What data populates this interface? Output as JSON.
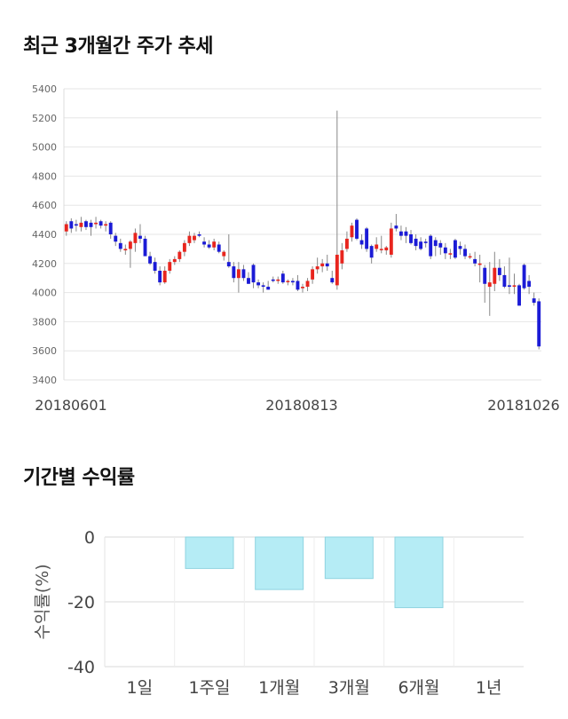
{
  "charts": {
    "price": {
      "title": "최근 3개월간 주가 추세"
    },
    "returns": {
      "title": "기간별 수익률"
    }
  },
  "colors": {
    "up": "#e8251e",
    "down": "#1b1bd6",
    "wick": "#888888",
    "bar_fill": "#b5ecf5",
    "bar_stroke": "#8fd3e0",
    "grid": "#e6e6e6"
  },
  "chart_data": [
    {
      "type": "candlestick",
      "title": "최근 3개월간 주가 추세",
      "ylim": [
        3400,
        5400
      ],
      "yticks": [
        3400,
        3600,
        3800,
        4000,
        4200,
        4400,
        4600,
        4800,
        5000,
        5200,
        5400
      ],
      "x_tick_labels": [
        "20180601",
        "20180813",
        "20181026"
      ],
      "grid": true,
      "candles": [
        {
          "o": 4420,
          "h": 4490,
          "l": 4390,
          "c": 4470
        },
        {
          "o": 4490,
          "h": 4510,
          "l": 4410,
          "c": 4440
        },
        {
          "o": 4470,
          "h": 4500,
          "l": 4420,
          "c": 4460
        },
        {
          "o": 4450,
          "h": 4520,
          "l": 4420,
          "c": 4480
        },
        {
          "o": 4490,
          "h": 4500,
          "l": 4430,
          "c": 4450
        },
        {
          "o": 4480,
          "h": 4500,
          "l": 4390,
          "c": 4450
        },
        {
          "o": 4470,
          "h": 4520,
          "l": 4440,
          "c": 4480
        },
        {
          "o": 4490,
          "h": 4500,
          "l": 4440,
          "c": 4460
        },
        {
          "o": 4460,
          "h": 4490,
          "l": 4420,
          "c": 4470
        },
        {
          "o": 4480,
          "h": 4490,
          "l": 4370,
          "c": 4400
        },
        {
          "o": 4390,
          "h": 4410,
          "l": 4320,
          "c": 4350
        },
        {
          "o": 4340,
          "h": 4370,
          "l": 4280,
          "c": 4300
        },
        {
          "o": 4290,
          "h": 4330,
          "l": 4260,
          "c": 4300
        },
        {
          "o": 4300,
          "h": 4360,
          "l": 4170,
          "c": 4350
        },
        {
          "o": 4340,
          "h": 4440,
          "l": 4280,
          "c": 4410
        },
        {
          "o": 4390,
          "h": 4470,
          "l": 4340,
          "c": 4370
        },
        {
          "o": 4370,
          "h": 4390,
          "l": 4270,
          "c": 4250
        },
        {
          "o": 4250,
          "h": 4280,
          "l": 4190,
          "c": 4200
        },
        {
          "o": 4210,
          "h": 4240,
          "l": 4130,
          "c": 4150
        },
        {
          "o": 4150,
          "h": 4180,
          "l": 4050,
          "c": 4070
        },
        {
          "o": 4070,
          "h": 4180,
          "l": 4060,
          "c": 4150
        },
        {
          "o": 4150,
          "h": 4230,
          "l": 4130,
          "c": 4210
        },
        {
          "o": 4210,
          "h": 4250,
          "l": 4190,
          "c": 4230
        },
        {
          "o": 4230,
          "h": 4290,
          "l": 4210,
          "c": 4280
        },
        {
          "o": 4280,
          "h": 4360,
          "l": 4250,
          "c": 4340
        },
        {
          "o": 4340,
          "h": 4420,
          "l": 4320,
          "c": 4390
        },
        {
          "o": 4360,
          "h": 4410,
          "l": 4340,
          "c": 4390
        },
        {
          "o": 4400,
          "h": 4420,
          "l": 4380,
          "c": 4390
        },
        {
          "o": 4350,
          "h": 4380,
          "l": 4310,
          "c": 4330
        },
        {
          "o": 4330,
          "h": 4360,
          "l": 4300,
          "c": 4310
        },
        {
          "o": 4310,
          "h": 4370,
          "l": 4290,
          "c": 4350
        },
        {
          "o": 4330,
          "h": 4350,
          "l": 4270,
          "c": 4280
        },
        {
          "o": 4250,
          "h": 4290,
          "l": 4220,
          "c": 4280
        },
        {
          "o": 4210,
          "h": 4400,
          "l": 4170,
          "c": 4180
        },
        {
          "o": 4180,
          "h": 4210,
          "l": 4070,
          "c": 4100
        },
        {
          "o": 4100,
          "h": 4210,
          "l": 4000,
          "c": 4160
        },
        {
          "o": 4160,
          "h": 4190,
          "l": 4080,
          "c": 4100
        },
        {
          "o": 4100,
          "h": 4140,
          "l": 4060,
          "c": 4060
        },
        {
          "o": 4190,
          "h": 4200,
          "l": 4030,
          "c": 4070
        },
        {
          "o": 4070,
          "h": 4090,
          "l": 4030,
          "c": 4050
        },
        {
          "o": 4050,
          "h": 4070,
          "l": 4000,
          "c": 4040
        },
        {
          "o": 4040,
          "h": 4080,
          "l": 4020,
          "c": 4020
        },
        {
          "o": 4090,
          "h": 4110,
          "l": 4070,
          "c": 4080
        },
        {
          "o": 4080,
          "h": 4110,
          "l": 4060,
          "c": 4090
        },
        {
          "o": 4130,
          "h": 4150,
          "l": 4060,
          "c": 4070
        },
        {
          "o": 4080,
          "h": 4090,
          "l": 4050,
          "c": 4080
        },
        {
          "o": 4080,
          "h": 4100,
          "l": 4050,
          "c": 4070
        },
        {
          "o": 4080,
          "h": 4120,
          "l": 4010,
          "c": 4020
        },
        {
          "o": 4030,
          "h": 4060,
          "l": 4000,
          "c": 4040
        },
        {
          "o": 4040,
          "h": 4100,
          "l": 4010,
          "c": 4080
        },
        {
          "o": 4090,
          "h": 4180,
          "l": 4060,
          "c": 4160
        },
        {
          "o": 4160,
          "h": 4240,
          "l": 4130,
          "c": 4180
        },
        {
          "o": 4180,
          "h": 4230,
          "l": 4140,
          "c": 4200
        },
        {
          "o": 4200,
          "h": 4260,
          "l": 4150,
          "c": 4180
        },
        {
          "o": 4100,
          "h": 4150,
          "l": 4060,
          "c": 4070
        },
        {
          "o": 4050,
          "h": 5250,
          "l": 4020,
          "c": 4260
        },
        {
          "o": 4200,
          "h": 4340,
          "l": 4160,
          "c": 4290
        },
        {
          "o": 4300,
          "h": 4420,
          "l": 4280,
          "c": 4370
        },
        {
          "o": 4380,
          "h": 4480,
          "l": 4350,
          "c": 4460
        },
        {
          "o": 4500,
          "h": 4510,
          "l": 4360,
          "c": 4370
        },
        {
          "o": 4360,
          "h": 4400,
          "l": 4300,
          "c": 4330
        },
        {
          "o": 4440,
          "h": 4450,
          "l": 4280,
          "c": 4300
        },
        {
          "o": 4320,
          "h": 4330,
          "l": 4200,
          "c": 4240
        },
        {
          "o": 4300,
          "h": 4380,
          "l": 4280,
          "c": 4330
        },
        {
          "o": 4300,
          "h": 4390,
          "l": 4270,
          "c": 4300
        },
        {
          "o": 4290,
          "h": 4320,
          "l": 4260,
          "c": 4310
        },
        {
          "o": 4260,
          "h": 4480,
          "l": 4240,
          "c": 4440
        },
        {
          "o": 4460,
          "h": 4540,
          "l": 4420,
          "c": 4440
        },
        {
          "o": 4420,
          "h": 4460,
          "l": 4360,
          "c": 4390
        },
        {
          "o": 4420,
          "h": 4450,
          "l": 4340,
          "c": 4390
        },
        {
          "o": 4400,
          "h": 4430,
          "l": 4330,
          "c": 4340
        },
        {
          "o": 4370,
          "h": 4400,
          "l": 4290,
          "c": 4320
        },
        {
          "o": 4350,
          "h": 4380,
          "l": 4290,
          "c": 4300
        },
        {
          "o": 4350,
          "h": 4370,
          "l": 4310,
          "c": 4340
        },
        {
          "o": 4390,
          "h": 4400,
          "l": 4230,
          "c": 4250
        },
        {
          "o": 4360,
          "h": 4380,
          "l": 4250,
          "c": 4320
        },
        {
          "o": 4340,
          "h": 4360,
          "l": 4260,
          "c": 4310
        },
        {
          "o": 4310,
          "h": 4340,
          "l": 4230,
          "c": 4270
        },
        {
          "o": 4270,
          "h": 4300,
          "l": 4230,
          "c": 4270
        },
        {
          "o": 4360,
          "h": 4370,
          "l": 4230,
          "c": 4240
        },
        {
          "o": 4320,
          "h": 4350,
          "l": 4260,
          "c": 4300
        },
        {
          "o": 4300,
          "h": 4330,
          "l": 4230,
          "c": 4250
        },
        {
          "o": 4250,
          "h": 4270,
          "l": 4230,
          "c": 4250
        },
        {
          "o": 4230,
          "h": 4280,
          "l": 4180,
          "c": 4200
        },
        {
          "o": 4190,
          "h": 4260,
          "l": 4070,
          "c": 4200
        },
        {
          "o": 4170,
          "h": 4190,
          "l": 3930,
          "c": 4060
        },
        {
          "o": 4040,
          "h": 4210,
          "l": 3840,
          "c": 4070
        },
        {
          "o": 4060,
          "h": 4280,
          "l": 4010,
          "c": 4170
        },
        {
          "o": 4170,
          "h": 4230,
          "l": 4080,
          "c": 4120
        },
        {
          "o": 4120,
          "h": 4180,
          "l": 4030,
          "c": 4040
        },
        {
          "o": 4050,
          "h": 4240,
          "l": 3990,
          "c": 4040
        },
        {
          "o": 4040,
          "h": 4130,
          "l": 3990,
          "c": 4050
        },
        {
          "o": 4050,
          "h": 4060,
          "l": 3910,
          "c": 3910
        },
        {
          "o": 4190,
          "h": 4200,
          "l": 4020,
          "c": 4030
        },
        {
          "o": 4080,
          "h": 4120,
          "l": 3990,
          "c": 4040
        },
        {
          "o": 3960,
          "h": 4000,
          "l": 3910,
          "c": 3930
        },
        {
          "o": 3940,
          "h": 3960,
          "l": 3610,
          "c": 3630
        }
      ]
    },
    {
      "type": "bar",
      "title": "기간별 수익률",
      "ylabel": "수익률(%)",
      "categories": [
        "1일",
        "1주일",
        "1개월",
        "3개월",
        "6개월",
        "1년"
      ],
      "values": [
        0,
        -9.7,
        -16.2,
        -12.8,
        -21.8,
        0
      ],
      "ylim": [
        -40,
        0
      ],
      "yticks": [
        0,
        -20,
        -40
      ],
      "grid": true
    }
  ]
}
